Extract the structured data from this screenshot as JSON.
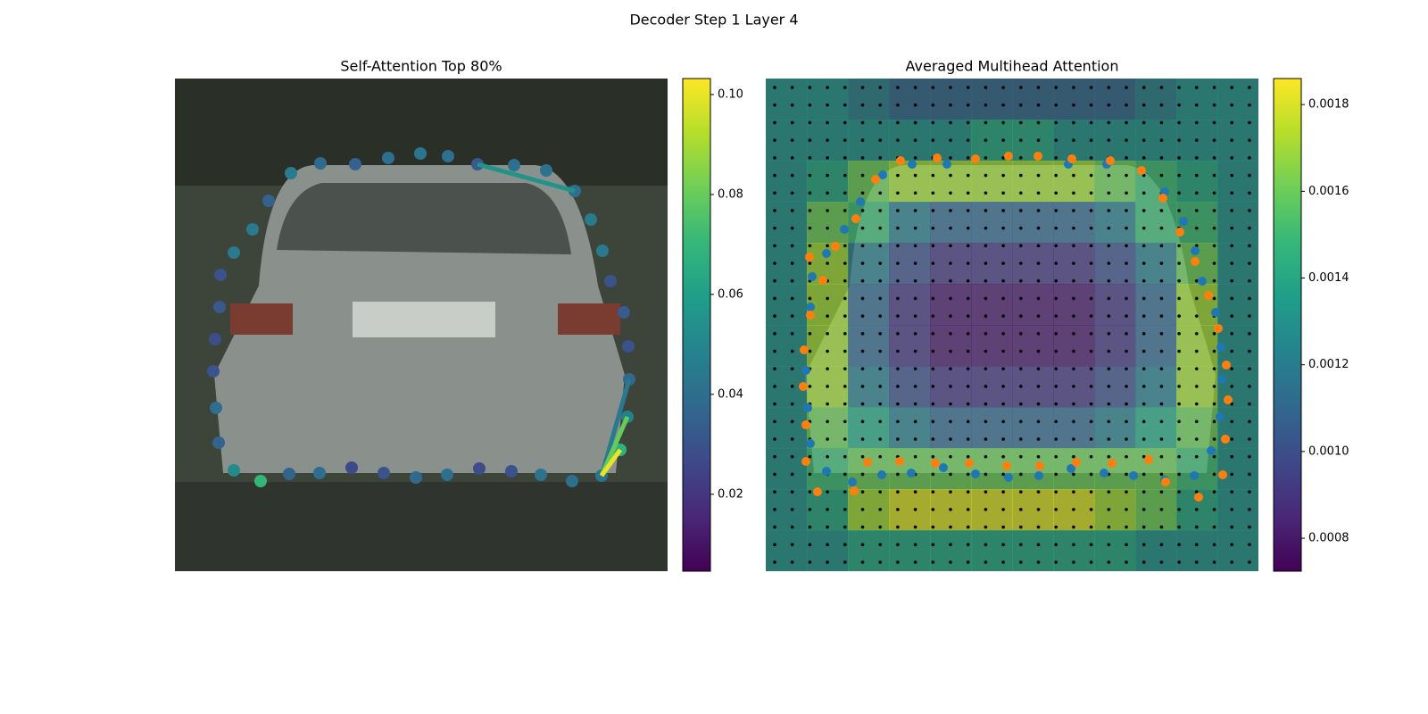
{
  "title": "Decoder Step 1 Layer 4",
  "chart_data": [
    {
      "type": "scatter",
      "title": "Self-Attention Top 80%",
      "xlim": [
        0,
        552
      ],
      "ylim": [
        552,
        0
      ],
      "x": [
        275,
        306,
        339,
        380,
        416,
        448,
        466,
        479,
        488,
        503,
        508,
        509,
        507,
        499,
        478,
        445,
        410,
        377,
        341,
        305,
        270,
        234,
        198,
        162,
        128,
        96,
        66,
        49,
        46,
        43,
        45,
        50,
        51,
        66,
        87,
        105,
        130,
        163,
        202,
        239
      ],
      "y": [
        84,
        87,
        96,
        97,
        103,
        126,
        158,
        193,
        227,
        262,
        300,
        337,
        379,
        416,
        445,
        451,
        444,
        440,
        437,
        444,
        447,
        442,
        436,
        442,
        443,
        451,
        439,
        408,
        369,
        328,
        292,
        256,
        220,
        195,
        169,
        137,
        106,
        95,
        96,
        89
      ],
      "values": [
        0.043,
        0.04,
        0.032,
        0.04,
        0.042,
        0.04,
        0.045,
        0.045,
        0.03,
        0.033,
        0.03,
        0.037,
        0.048,
        0.068,
        0.042,
        0.04,
        0.042,
        0.03,
        0.028,
        0.04,
        0.038,
        0.03,
        0.027,
        0.04,
        0.036,
        0.07,
        0.052,
        0.036,
        0.04,
        0.03,
        0.028,
        0.032,
        0.03,
        0.045,
        0.045,
        0.035,
        0.045,
        0.038,
        0.035,
        0.04
      ],
      "edges": {
        "from": [
          2,
          14,
          14,
          14
        ],
        "to": [
          5,
          11,
          12,
          13
        ],
        "values": [
          0.055,
          0.045,
          0.08,
          0.1
        ]
      },
      "clim": [
        0.0046,
        0.1032
      ],
      "cticks": [
        0.02,
        0.04,
        0.06,
        0.08,
        {
          "value": 0.1,
          "label": "0.10"
        }
      ]
    },
    {
      "type": "heatmap",
      "title": "Averaged Multihead Attention",
      "xlim": [
        0,
        552
      ],
      "ylim": [
        552,
        0
      ],
      "heatmap": [
        [
          0.0013,
          0.0013,
          0.0012,
          0.0011,
          0.0011,
          0.0011,
          0.0011,
          0.0011,
          0.0011,
          0.0012,
          0.0013,
          0.0013
        ],
        [
          0.0013,
          0.0013,
          0.0013,
          0.0013,
          0.0013,
          0.0014,
          0.0014,
          0.0013,
          0.0013,
          0.0013,
          0.0013,
          0.0013
        ],
        [
          0.0013,
          0.0014,
          0.0016,
          0.0017,
          0.0017,
          0.0017,
          0.0017,
          0.0017,
          0.0016,
          0.0015,
          0.0014,
          0.0013
        ],
        [
          0.0013,
          0.0016,
          0.0015,
          0.0012,
          0.0011,
          0.0011,
          0.0011,
          0.0011,
          0.0012,
          0.0015,
          0.0015,
          0.0013
        ],
        [
          0.0013,
          0.0017,
          0.0012,
          0.001,
          0.0009,
          0.0009,
          0.0009,
          0.0009,
          0.001,
          0.0012,
          0.0016,
          0.0013
        ],
        [
          0.0013,
          0.0017,
          0.0011,
          0.0009,
          0.0008,
          0.0008,
          0.0008,
          0.0008,
          0.0009,
          0.0011,
          0.0017,
          0.0013
        ],
        [
          0.0013,
          0.0017,
          0.0011,
          0.0009,
          0.0008,
          0.0008,
          0.0008,
          0.0008,
          0.0009,
          0.0011,
          0.0017,
          0.0013
        ],
        [
          0.0013,
          0.0017,
          0.0012,
          0.001,
          0.0009,
          0.0009,
          0.0009,
          0.0009,
          0.001,
          0.0012,
          0.0017,
          0.0013
        ],
        [
          0.0013,
          0.0016,
          0.0014,
          0.0012,
          0.0011,
          0.0011,
          0.0011,
          0.0011,
          0.0012,
          0.0014,
          0.0016,
          0.0013
        ],
        [
          0.0013,
          0.0015,
          0.0016,
          0.0016,
          0.0016,
          0.0016,
          0.0016,
          0.0016,
          0.0016,
          0.0016,
          0.0015,
          0.0013
        ],
        [
          0.0013,
          0.0014,
          0.0017,
          0.0018,
          0.0018,
          0.0018,
          0.0018,
          0.0018,
          0.0017,
          0.0016,
          0.0014,
          0.0013
        ],
        [
          0.0013,
          0.0013,
          0.0014,
          0.0014,
          0.0014,
          0.0014,
          0.0014,
          0.0014,
          0.0014,
          0.0013,
          0.0013,
          0.0013
        ]
      ],
      "series": [
        {
          "color": "#1f77b4",
          "x": [
            203,
            164,
            131,
            106,
            88,
            68,
            52,
            50,
            45,
            47,
            50,
            68,
            97,
            130,
            163,
            199,
            235,
            272,
            306,
            342,
            379,
            412,
            447,
            480,
            499,
            509,
            511,
            510,
            504,
            489,
            481,
            468,
            447,
            382,
            339
          ],
          "y": [
            96,
            96,
            108,
            138,
            169,
            196,
            222,
            256,
            327,
            369,
            409,
            440,
            452,
            444,
            442,
            436,
            443,
            447,
            445,
            437,
            442,
            445,
            450,
            445,
            417,
            379,
            337,
            301,
            262,
            227,
            193,
            160,
            127,
            96,
            96
          ]
        },
        {
          "color": "#ff7f0e",
          "x": [
            272,
            305,
            343,
            386,
            421,
            445,
            464,
            481,
            496,
            507,
            516,
            518,
            515,
            512,
            485,
            448,
            429,
            388,
            348,
            307,
            270,
            228,
            190,
            150,
            114,
            99,
            58,
            45,
            45,
            42,
            43,
            50,
            64,
            49,
            78,
            101,
            123,
            151,
            192,
            235
          ],
          "y": [
            87,
            87,
            90,
            92,
            103,
            134,
            172,
            205,
            243,
            280,
            321,
            360,
            404,
            444,
            469,
            452,
            427,
            431,
            430,
            434,
            434,
            431,
            431,
            429,
            430,
            462,
            463,
            429,
            388,
            345,
            304,
            265,
            226,
            200,
            188,
            157,
            113,
            92,
            89,
            90
          ]
        }
      ],
      "clim": [
        0.000724,
        0.00186
      ],
      "cticks": [
        0.0008,
        {
          "value": 0.001,
          "label": "0.0010"
        },
        0.0012,
        0.0014,
        0.0016,
        0.0018
      ]
    }
  ]
}
